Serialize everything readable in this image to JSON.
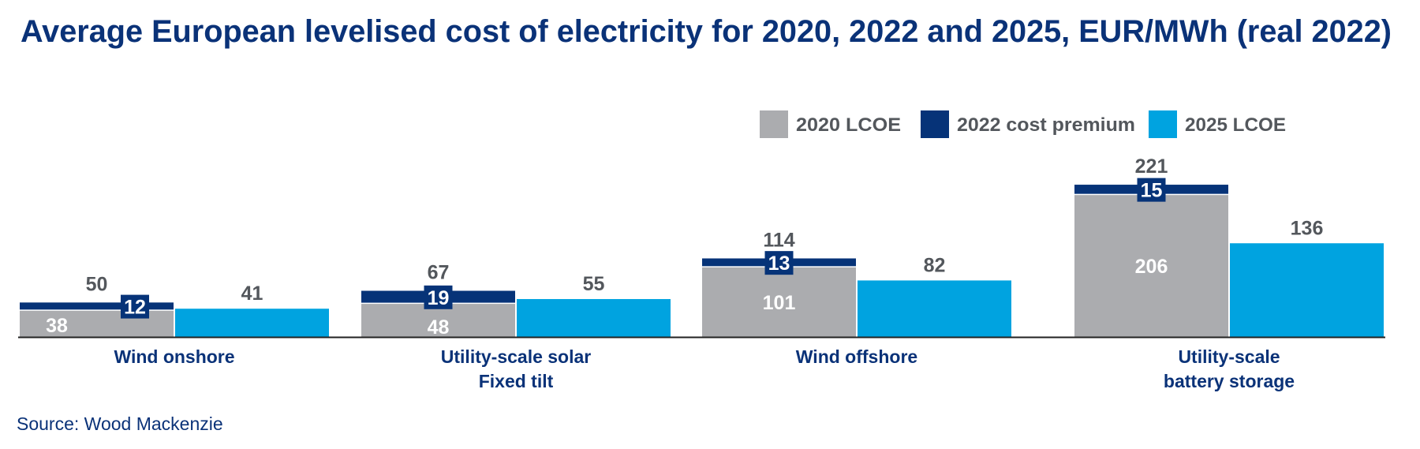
{
  "chart_data": {
    "type": "bar",
    "title": "Average European levelised cost of electricity for 2020, 2022 and 2025, EUR/MWh (real 2022)",
    "xlabel": "",
    "ylabel": "",
    "ylim": [
      0,
      240
    ],
    "grid": false,
    "legend_position": "top-right",
    "categories": [
      [
        "Wind onshore"
      ],
      [
        "Utility-scale solar",
        "Fixed tilt"
      ],
      [
        "Wind offshore"
      ],
      [
        "Utility-scale",
        "battery storage"
      ]
    ],
    "series": [
      {
        "name": "2020 LCOE",
        "stack": "A",
        "color": "#abacaf",
        "values": [
          38,
          48,
          101,
          206
        ]
      },
      {
        "name": "2022 cost premium",
        "stack": "A",
        "color": "#063378",
        "values": [
          12,
          19,
          13,
          15
        ]
      },
      {
        "name": "2025 LCOE",
        "stack": "B",
        "color": "#00a3e0",
        "values": [
          41,
          55,
          82,
          136
        ]
      }
    ],
    "stack_totals": [
      50,
      67,
      114,
      221
    ],
    "source": "Source: Wood Mackenzie"
  },
  "colors": {
    "title": "#0a3278",
    "label_gray": "#53575c",
    "axis": "#222222"
  }
}
